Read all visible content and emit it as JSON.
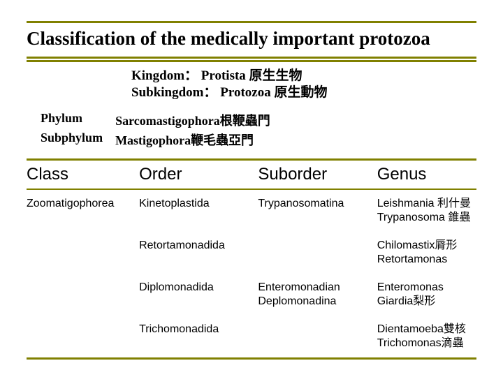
{
  "colors": {
    "rule": "#808000",
    "text": "#000000",
    "background": "#ffffff"
  },
  "title": "Classification of the medically important protozoa",
  "header": {
    "kingdom_label": "Kingdom：",
    "kingdom_value": "Protista 原生生物",
    "subkingdom_label": "Subkingdom：",
    "subkingdom_value": "Protozoa 原生動物"
  },
  "phylum": {
    "phylum_label": "Phylum",
    "phylum_value": "Sarcomastigophora根鞭蟲門",
    "subphylum_label": "Subphylum",
    "subphylum_value": "Mastigophora鞭毛蟲亞門"
  },
  "table": {
    "headers": {
      "class": "Class",
      "order": "Order",
      "suborder": "Suborder",
      "genus": "Genus"
    },
    "rows": [
      {
        "class": "Zoomatigophorea",
        "order": "Kinetoplastida",
        "suborder": "Trypanosomatina",
        "genus1": "Leishmania 利什曼",
        "genus2": "Trypanosoma 錐蟲"
      },
      {
        "class": "",
        "order": "Retortamonadida",
        "suborder": "",
        "genus1": "Chilomastix脣形",
        "genus2": "Retortamonas"
      },
      {
        "class": "",
        "order": "Diplomonadida",
        "suborder": "Enteromonadian\nDeplomonadina",
        "genus1": "Enteromonas",
        "genus2": "Giardia梨形"
      },
      {
        "class": "",
        "order": "Trichomonadida",
        "suborder": "",
        "genus1": "Dientamoeba雙核",
        "genus2": "Trichomonas滴蟲"
      }
    ]
  }
}
